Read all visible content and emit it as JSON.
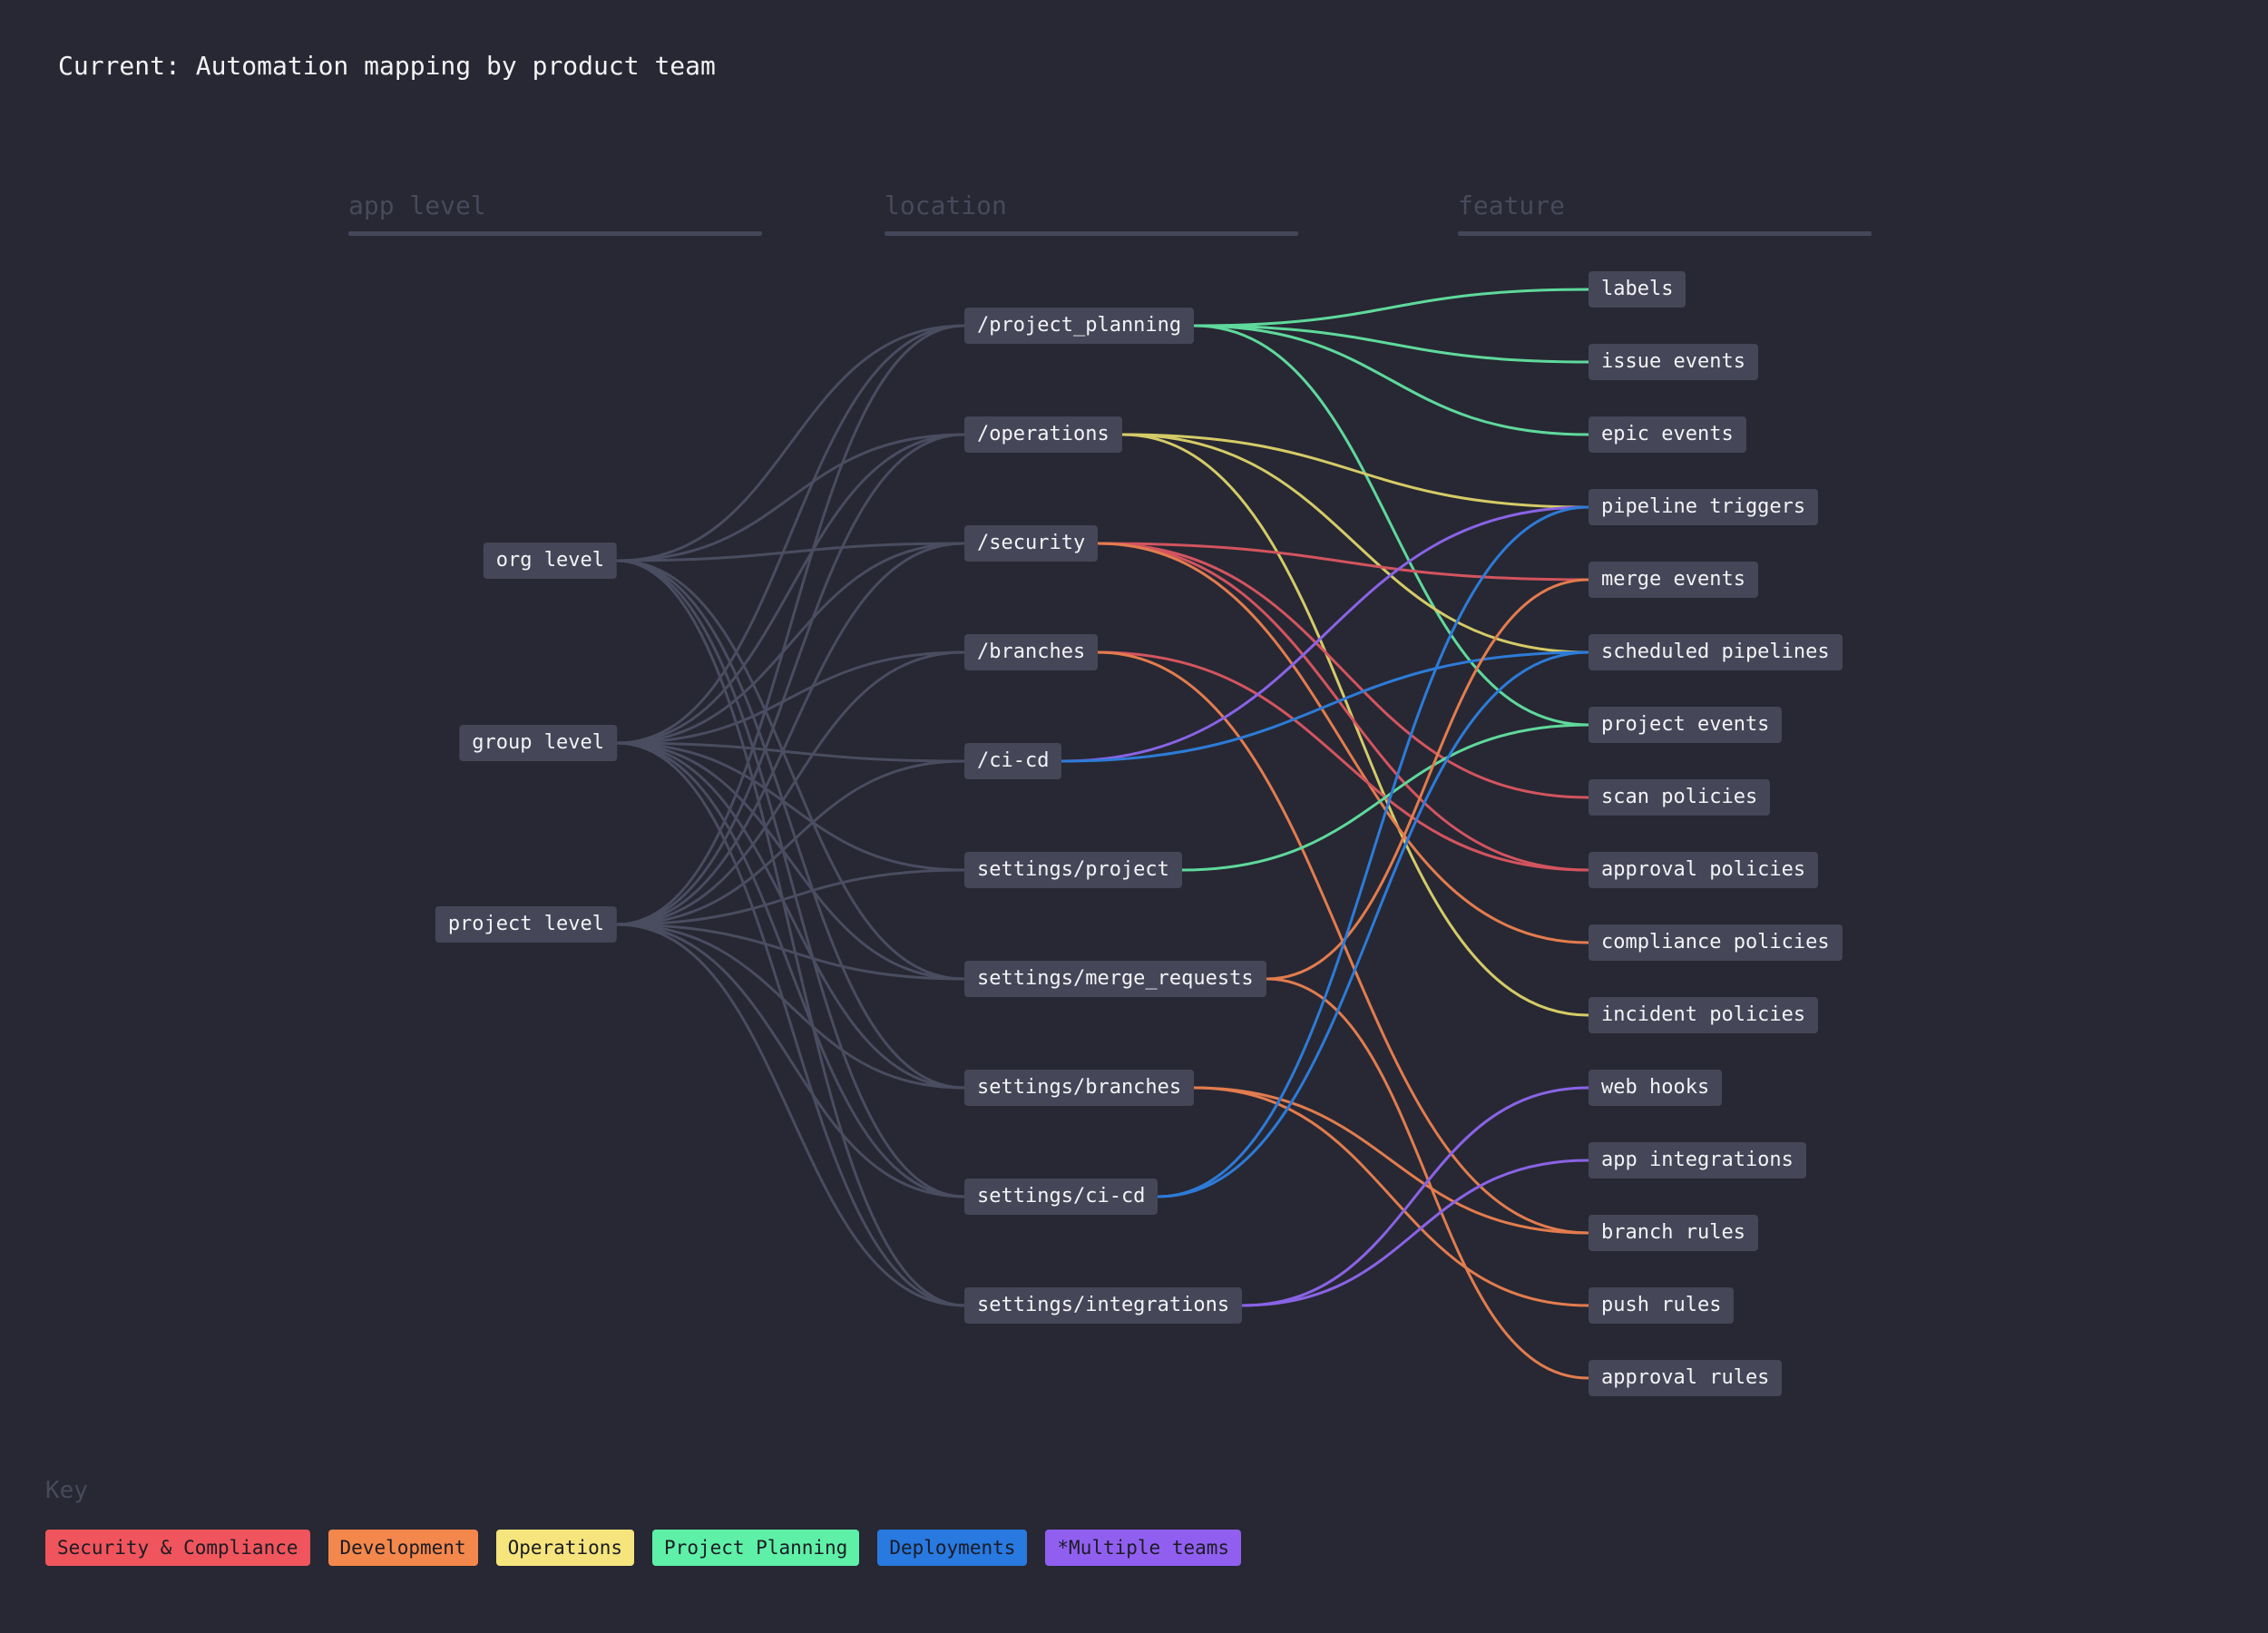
{
  "title": "Current: Automation mapping by product team",
  "columns": {
    "app_level": "app level",
    "location": "location",
    "feature": "feature"
  },
  "app_levels": [
    {
      "id": "org",
      "label": "org level"
    },
    {
      "id": "group",
      "label": "group level"
    },
    {
      "id": "project",
      "label": "project level"
    }
  ],
  "locations": [
    {
      "id": "project_planning",
      "label": "/project_planning"
    },
    {
      "id": "operations",
      "label": "/operations"
    },
    {
      "id": "security",
      "label": "/security"
    },
    {
      "id": "branches",
      "label": "/branches"
    },
    {
      "id": "ci_cd",
      "label": "/ci-cd"
    },
    {
      "id": "settings_project",
      "label": "settings/project"
    },
    {
      "id": "settings_merge_requests",
      "label": "settings/merge_requests"
    },
    {
      "id": "settings_branches",
      "label": "settings/branches"
    },
    {
      "id": "settings_ci_cd",
      "label": "settings/ci-cd"
    },
    {
      "id": "settings_integrations",
      "label": "settings/integrations"
    }
  ],
  "features": [
    {
      "id": "labels",
      "label": "labels"
    },
    {
      "id": "issue_events",
      "label": "issue events"
    },
    {
      "id": "epic_events",
      "label": "epic events"
    },
    {
      "id": "pipeline_triggers",
      "label": "pipeline triggers"
    },
    {
      "id": "merge_events",
      "label": "merge events"
    },
    {
      "id": "scheduled_pipelines",
      "label": "scheduled pipelines"
    },
    {
      "id": "project_events",
      "label": "project events"
    },
    {
      "id": "scan_policies",
      "label": "scan policies"
    },
    {
      "id": "approval_policies",
      "label": "approval policies"
    },
    {
      "id": "compliance_policies",
      "label": "compliance policies"
    },
    {
      "id": "incident_policies",
      "label": "incident policies"
    },
    {
      "id": "web_hooks",
      "label": "web hooks"
    },
    {
      "id": "app_integrations",
      "label": "app integrations"
    },
    {
      "id": "branch_rules",
      "label": "branch rules"
    },
    {
      "id": "push_rules",
      "label": "push rules"
    },
    {
      "id": "approval_rules",
      "label": "approval rules"
    }
  ],
  "key": {
    "label": "Key",
    "items": [
      {
        "team": "security",
        "label": "Security & Compliance",
        "color": "#f0545c"
      },
      {
        "team": "development",
        "label": "Development",
        "color": "#f4874b"
      },
      {
        "team": "operations",
        "label": "Operations",
        "color": "#f5e57c"
      },
      {
        "team": "planning",
        "label": "Project Planning",
        "color": "#5ef0a7"
      },
      {
        "team": "deployments",
        "label": "Deployments",
        "color": "#2879e0"
      },
      {
        "team": "multiple",
        "label": "*Multiple teams",
        "color": "#915ff0"
      }
    ]
  },
  "link_colors": {
    "level": "#4a4c60",
    "security": "#d3545f",
    "development": "#e37c4e",
    "operations": "#d5cb67",
    "planning": "#5fd99c",
    "deployments": "#2d7bd8",
    "multiple": "#8a63e6"
  },
  "level_links": [
    [
      "org",
      "security"
    ],
    [
      "org",
      "project_planning"
    ],
    [
      "org",
      "operations"
    ],
    [
      "org",
      "settings_merge_requests"
    ],
    [
      "org",
      "settings_branches"
    ],
    [
      "org",
      "settings_ci_cd"
    ],
    [
      "org",
      "settings_integrations"
    ],
    [
      "group",
      "project_planning"
    ],
    [
      "group",
      "operations"
    ],
    [
      "group",
      "security"
    ],
    [
      "group",
      "branches"
    ],
    [
      "group",
      "ci_cd"
    ],
    [
      "group",
      "settings_project"
    ],
    [
      "group",
      "settings_merge_requests"
    ],
    [
      "group",
      "settings_branches"
    ],
    [
      "group",
      "settings_ci_cd"
    ],
    [
      "group",
      "settings_integrations"
    ],
    [
      "project",
      "project_planning"
    ],
    [
      "project",
      "operations"
    ],
    [
      "project",
      "security"
    ],
    [
      "project",
      "branches"
    ],
    [
      "project",
      "ci_cd"
    ],
    [
      "project",
      "settings_project"
    ],
    [
      "project",
      "settings_merge_requests"
    ],
    [
      "project",
      "settings_branches"
    ],
    [
      "project",
      "settings_ci_cd"
    ],
    [
      "project",
      "settings_integrations"
    ]
  ],
  "feature_links": [
    [
      "project_planning",
      "labels",
      "planning"
    ],
    [
      "project_planning",
      "issue_events",
      "planning"
    ],
    [
      "project_planning",
      "epic_events",
      "planning"
    ],
    [
      "project_planning",
      "project_events",
      "planning"
    ],
    [
      "operations",
      "pipeline_triggers",
      "operations"
    ],
    [
      "operations",
      "scheduled_pipelines",
      "operations"
    ],
    [
      "operations",
      "incident_policies",
      "operations"
    ],
    [
      "security",
      "merge_events",
      "security"
    ],
    [
      "security",
      "approval_policies",
      "security"
    ],
    [
      "security",
      "scan_policies",
      "security"
    ],
    [
      "security",
      "compliance_policies",
      "development"
    ],
    [
      "branches",
      "approval_policies",
      "security"
    ],
    [
      "branches",
      "branch_rules",
      "development"
    ],
    [
      "ci_cd",
      "pipeline_triggers",
      "multiple"
    ],
    [
      "ci_cd",
      "scheduled_pipelines",
      "deployments"
    ],
    [
      "settings_project",
      "project_events",
      "planning"
    ],
    [
      "settings_merge_requests",
      "merge_events",
      "development"
    ],
    [
      "settings_merge_requests",
      "approval_rules",
      "development"
    ],
    [
      "settings_branches",
      "branch_rules",
      "development"
    ],
    [
      "settings_branches",
      "push_rules",
      "development"
    ],
    [
      "settings_ci_cd",
      "pipeline_triggers",
      "deployments"
    ],
    [
      "settings_ci_cd",
      "scheduled_pipelines",
      "deployments"
    ],
    [
      "settings_integrations",
      "web_hooks",
      "multiple"
    ],
    [
      "settings_integrations",
      "app_integrations",
      "multiple"
    ]
  ]
}
